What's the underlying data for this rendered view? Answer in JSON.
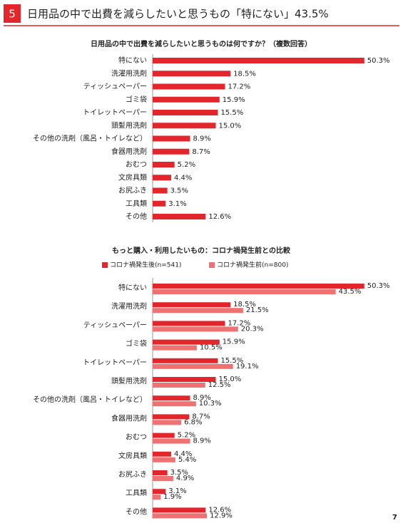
{
  "header": {
    "number": "5",
    "title": "日用品の中で出費を減らしたいと思うもの「特にない」43.5%"
  },
  "page_number": "7",
  "chart_data": [
    {
      "type": "hbar",
      "title": "日用品の中で出費を減らしたいと思うものは何ですか？（複数回答）",
      "categories": [
        "特にない",
        "洗濯用洗剤",
        "ティッシュペーパー",
        "ゴミ袋",
        "トイレットペーパー",
        "頭髪用洗剤",
        "その他の洗剤（風呂・トイレなど）",
        "食器用洗剤",
        "おむつ",
        "文房具類",
        "お尻ふき",
        "工具類",
        "その他"
      ],
      "values": [
        50.3,
        18.5,
        17.2,
        15.9,
        15.5,
        15.0,
        8.9,
        8.7,
        5.2,
        4.4,
        3.5,
        3.1,
        12.6
      ],
      "value_labels": [
        "50.3%",
        "18.5%",
        "17.2%",
        "15.9%",
        "15.5%",
        "15.0%",
        "8.9%",
        "8.7%",
        "5.2%",
        "4.4%",
        "3.5%",
        "3.1%",
        "12.6%"
      ],
      "color": "#e3262b"
    },
    {
      "type": "grouped_hbar",
      "title": "もっと購入・利用したいもの：コロナ禍発生前との比較",
      "categories": [
        "特にない",
        "洗濯用洗剤",
        "ティッシュペーパー",
        "ゴミ袋",
        "トイレットペーパー",
        "頭髪用洗剤",
        "その他の洗剤（風呂・トイレなど）",
        "食器用洗剤",
        "おむつ",
        "文房具類",
        "お尻ふき",
        "工具類",
        "その他"
      ],
      "series": [
        {
          "name": "コロナ禍発生後(n=541)",
          "color": "#e3262b",
          "values": [
            50.3,
            18.5,
            17.2,
            15.9,
            15.5,
            15.0,
            8.9,
            8.7,
            5.2,
            4.4,
            3.5,
            3.1,
            12.6
          ],
          "value_labels": [
            "50.3%",
            "18.5%",
            "17.2%",
            "15.9%",
            "15.5%",
            "15.0%",
            "8.9%",
            "8.7%",
            "5.2%",
            "4.4%",
            "3.5%",
            "3.1%",
            "12.6%"
          ]
        },
        {
          "name": "コロナ禍発生前(n=800)",
          "color": "#ef7272",
          "values": [
            43.5,
            21.5,
            20.3,
            10.5,
            19.1,
            12.5,
            10.3,
            6.8,
            8.9,
            5.4,
            4.9,
            1.9,
            12.9
          ],
          "value_labels": [
            "43.5%",
            "21.5%",
            "20.3%",
            "10.5%",
            "19.1%",
            "12.5%",
            "10.3%",
            "6.8%",
            "8.9%",
            "5.4%",
            "4.9%",
            "1.9%",
            "12.9%"
          ]
        }
      ]
    }
  ]
}
